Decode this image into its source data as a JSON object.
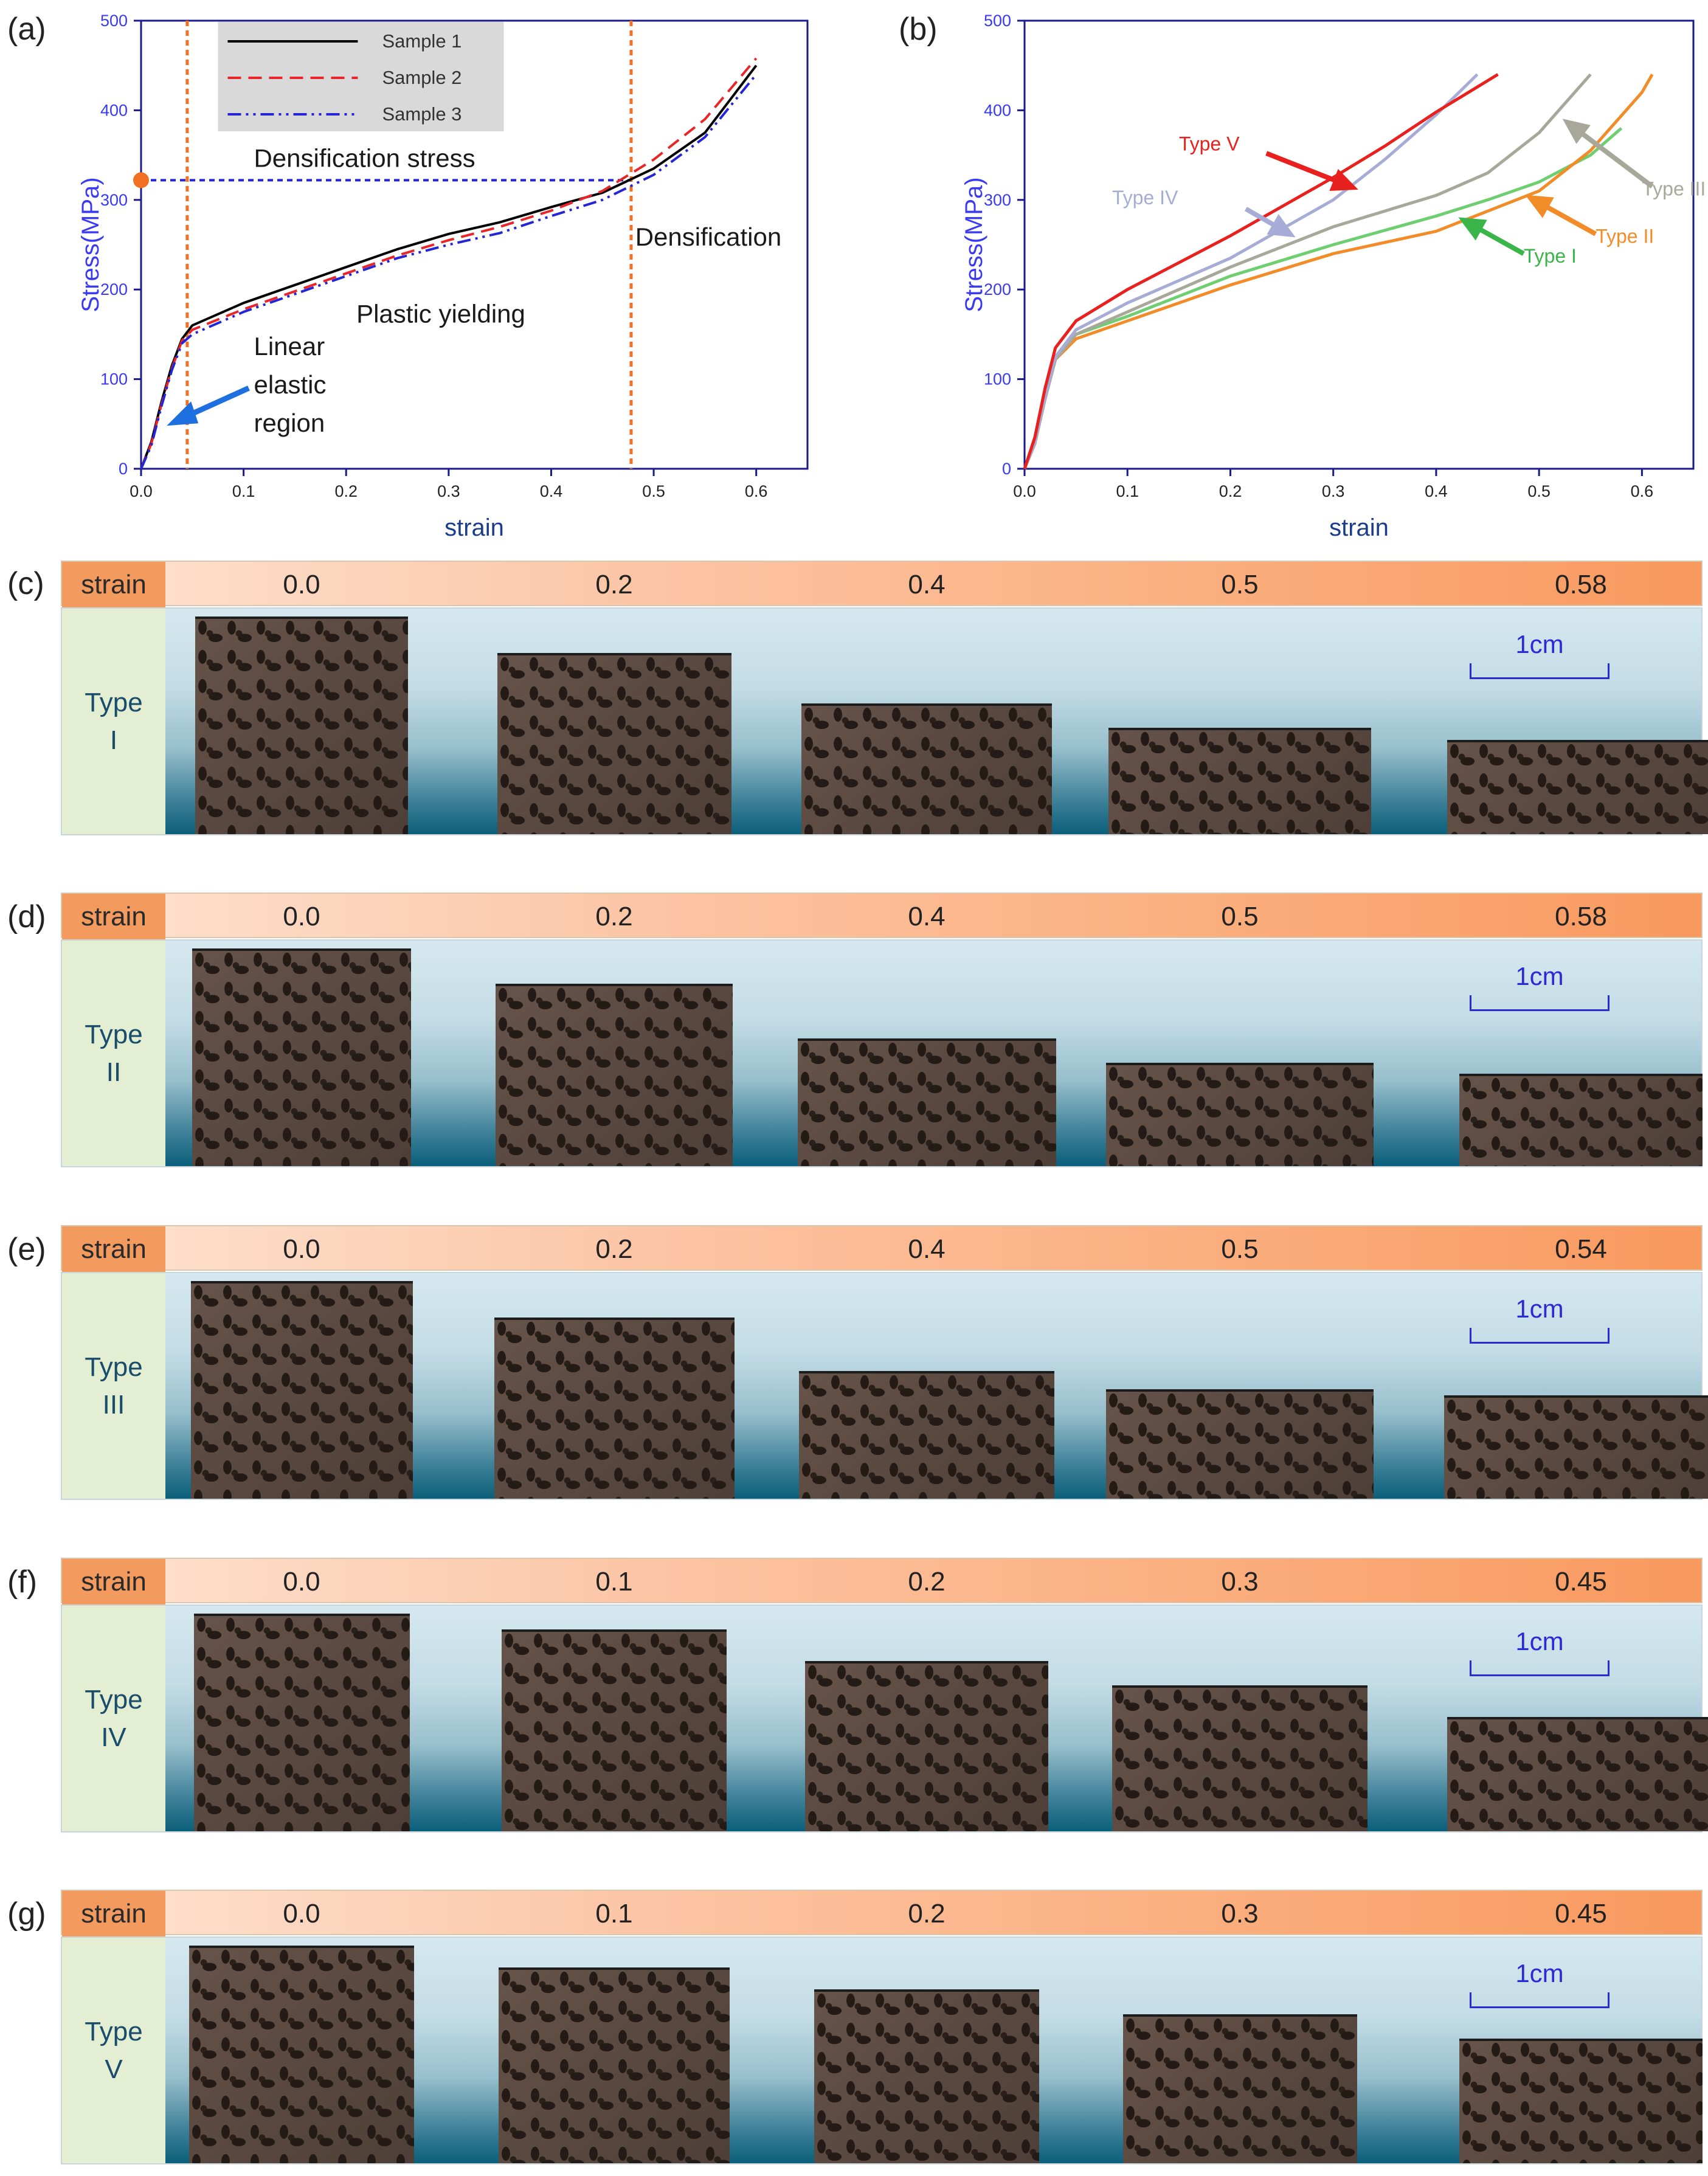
{
  "panel_labels": [
    "(a)",
    "(b)",
    "(c)",
    "(d)",
    "(e)",
    "(f)",
    "(g)"
  ],
  "chart_data": [
    {
      "type": "line",
      "panel": "(a)",
      "xlabel": "strain",
      "ylabel": "Stress(MPa)",
      "xlim": [
        0.0,
        0.65
      ],
      "ylim": [
        0,
        500
      ],
      "xticks": [
        "0.0",
        "0.1",
        "0.2",
        "0.3",
        "0.4",
        "0.5",
        "0.6"
      ],
      "yticks": [
        "0",
        "100",
        "200",
        "300",
        "400",
        "500"
      ],
      "legend": [
        "Sample 1",
        "Sample 2",
        "Sample 3"
      ],
      "series": [
        {
          "name": "Sample 1",
          "color": "#000000",
          "dash": "solid",
          "x": [
            0,
            0.01,
            0.02,
            0.03,
            0.04,
            0.05,
            0.1,
            0.15,
            0.2,
            0.25,
            0.3,
            0.35,
            0.4,
            0.45,
            0.5,
            0.55,
            0.6
          ],
          "y": [
            0,
            30,
            75,
            115,
            145,
            160,
            185,
            205,
            225,
            245,
            262,
            275,
            292,
            308,
            335,
            375,
            450
          ]
        },
        {
          "name": "Sample 2",
          "color": "#e8262a",
          "dash": "dashed",
          "x": [
            0,
            0.01,
            0.02,
            0.03,
            0.04,
            0.05,
            0.1,
            0.15,
            0.2,
            0.25,
            0.3,
            0.35,
            0.4,
            0.45,
            0.5,
            0.55,
            0.6
          ],
          "y": [
            0,
            28,
            72,
            112,
            143,
            155,
            178,
            198,
            218,
            238,
            255,
            270,
            288,
            310,
            345,
            390,
            458
          ]
        },
        {
          "name": "Sample 3",
          "color": "#2525d6",
          "dash": "dashdot",
          "x": [
            0,
            0.01,
            0.02,
            0.03,
            0.04,
            0.05,
            0.1,
            0.15,
            0.2,
            0.25,
            0.3,
            0.35,
            0.4,
            0.45,
            0.5,
            0.55,
            0.6
          ],
          "y": [
            0,
            26,
            70,
            110,
            140,
            150,
            175,
            195,
            215,
            235,
            250,
            263,
            282,
            300,
            328,
            370,
            440
          ]
        }
      ],
      "markers": {
        "linear_end_strain": 0.045,
        "densification_strain": 0.478,
        "densification_stress": 322
      },
      "annotations": {
        "densification_stress": "Densification stress",
        "densification": "Densification",
        "plastic": "Plastic yielding",
        "linear": [
          "Linear",
          "elastic",
          "region"
        ]
      }
    },
    {
      "type": "line",
      "panel": "(b)",
      "xlabel": "strain",
      "ylabel": "Stress(MPa)",
      "xlim": [
        0.0,
        0.65
      ],
      "ylim": [
        0,
        500
      ],
      "xticks": [
        "0.0",
        "0.1",
        "0.2",
        "0.3",
        "0.4",
        "0.5",
        "0.6"
      ],
      "yticks": [
        "0",
        "100",
        "200",
        "300",
        "400",
        "500"
      ],
      "series": [
        {
          "name": "Type I",
          "color": "#6fcf70",
          "x": [
            0,
            0.01,
            0.02,
            0.03,
            0.05,
            0.1,
            0.2,
            0.3,
            0.4,
            0.45,
            0.5,
            0.55,
            0.58
          ],
          "y": [
            0,
            30,
            80,
            125,
            150,
            170,
            215,
            250,
            282,
            300,
            320,
            350,
            380
          ]
        },
        {
          "name": "Type II",
          "color": "#f28c28",
          "x": [
            0,
            0.01,
            0.02,
            0.03,
            0.05,
            0.1,
            0.2,
            0.3,
            0.4,
            0.5,
            0.55,
            0.6,
            0.61
          ],
          "y": [
            0,
            28,
            78,
            122,
            145,
            165,
            205,
            240,
            265,
            310,
            355,
            420,
            440
          ]
        },
        {
          "name": "Type III",
          "color": "#a8a89a",
          "x": [
            0,
            0.01,
            0.02,
            0.03,
            0.05,
            0.1,
            0.2,
            0.3,
            0.4,
            0.45,
            0.5,
            0.55
          ],
          "y": [
            0,
            28,
            78,
            122,
            150,
            175,
            225,
            270,
            305,
            330,
            375,
            440
          ]
        },
        {
          "name": "Type IV",
          "color": "#a6acd6",
          "x": [
            0,
            0.01,
            0.02,
            0.03,
            0.05,
            0.1,
            0.2,
            0.3,
            0.35,
            0.4,
            0.44
          ],
          "y": [
            0,
            30,
            80,
            125,
            155,
            185,
            235,
            300,
            345,
            395,
            440
          ]
        },
        {
          "name": "Type V",
          "color": "#e8211f",
          "x": [
            0,
            0.01,
            0.02,
            0.03,
            0.05,
            0.1,
            0.2,
            0.3,
            0.35,
            0.4,
            0.46
          ],
          "y": [
            0,
            35,
            90,
            135,
            165,
            200,
            260,
            325,
            360,
            398,
            440
          ]
        }
      ],
      "labels": [
        {
          "text": "Type V",
          "color": "#e8211f"
        },
        {
          "text": "Type IV",
          "color": "#a6acd6"
        },
        {
          "text": "Type III",
          "color": "#a8a89a"
        },
        {
          "text": "Type II",
          "color": "#f28c28"
        },
        {
          "text": "Type I",
          "color": "#39b54a"
        }
      ]
    }
  ],
  "rows": [
    {
      "header": "strain",
      "type": [
        "Type",
        "I"
      ],
      "strains": [
        "0.0",
        "0.2",
        "0.4",
        "0.5",
        "0.58"
      ],
      "scale": "1cm"
    },
    {
      "header": "strain",
      "type": [
        "Type",
        "II"
      ],
      "strains": [
        "0.0",
        "0.2",
        "0.4",
        "0.5",
        "0.58"
      ],
      "scale": "1cm"
    },
    {
      "header": "strain",
      "type": [
        "Type",
        "III"
      ],
      "strains": [
        "0.0",
        "0.2",
        "0.4",
        "0.5",
        "0.54"
      ],
      "scale": "1cm"
    },
    {
      "header": "strain",
      "type": [
        "Type",
        "IV"
      ],
      "strains": [
        "0.0",
        "0.1",
        "0.2",
        "0.3",
        "0.45"
      ],
      "scale": "1cm"
    },
    {
      "header": "strain",
      "type": [
        "Type",
        "V"
      ],
      "strains": [
        "0.0",
        "0.1",
        "0.2",
        "0.3",
        "0.45"
      ],
      "scale": "1cm"
    }
  ]
}
